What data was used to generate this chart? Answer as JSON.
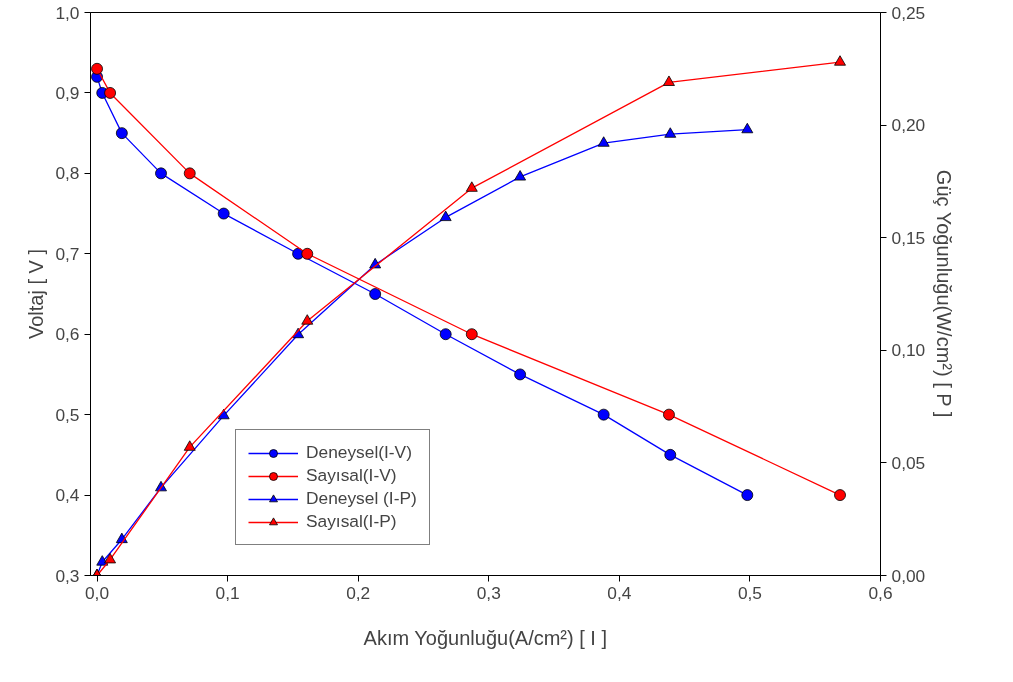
{
  "chart_data": {
    "type": "line",
    "xlabel": "Akım Yoğunluğu(A/cm²) [ I ]",
    "ylabel": "Voltaj [ V ]",
    "y2label": "Güç Yoğunluğu(W/cm²) [ P ]",
    "xlim": [
      -0.005,
      0.6
    ],
    "ylim": [
      0.3,
      1.0
    ],
    "y2lim": [
      0,
      0.25
    ],
    "xticks": [
      {
        "value": 0,
        "label": "0,0"
      },
      {
        "value": 0.1,
        "label": "0,1"
      },
      {
        "value": 0.2,
        "label": "0,2"
      },
      {
        "value": 0.3,
        "label": "0,3"
      },
      {
        "value": 0.4,
        "label": "0,4"
      },
      {
        "value": 0.5,
        "label": "0,5"
      },
      {
        "value": 0.6,
        "label": "0,6"
      }
    ],
    "yticks": [
      {
        "value": 0.3,
        "label": "0,3"
      },
      {
        "value": 0.4,
        "label": "0,4"
      },
      {
        "value": 0.5,
        "label": "0,5"
      },
      {
        "value": 0.6,
        "label": "0,6"
      },
      {
        "value": 0.7,
        "label": "0,7"
      },
      {
        "value": 0.8,
        "label": "0,8"
      },
      {
        "value": 0.9,
        "label": "0,9"
      },
      {
        "value": 1.0,
        "label": "1,0"
      }
    ],
    "y2ticks": [
      {
        "value": 0,
        "label": "0,00"
      },
      {
        "value": 0.05,
        "label": "0,05"
      },
      {
        "value": 0.1,
        "label": "0,10"
      },
      {
        "value": 0.15,
        "label": "0,15"
      },
      {
        "value": 0.2,
        "label": "0,20"
      },
      {
        "value": 0.25,
        "label": "0,25"
      }
    ],
    "grid": false,
    "legend": "bottom left",
    "line_style": "solid",
    "series": [
      {
        "name": "Deneysel(I-V)",
        "color": "#0000ff",
        "marker": "circle",
        "x": [
          0,
          0.004,
          0.019,
          0.049,
          0.097,
          0.154,
          0.213,
          0.267,
          0.324,
          0.388,
          0.439,
          0.498
        ],
        "values": [
          0.92,
          0.9,
          0.85,
          0.8,
          0.75,
          0.7,
          0.65,
          0.6,
          0.55,
          0.5,
          0.45,
          0.4
        ]
      },
      {
        "name": "Sayısal(I-V)",
        "color": "#ff0000",
        "marker": "circle",
        "x": [
          0,
          0.01,
          0.071,
          0.161,
          0.287,
          0.438,
          0.569
        ],
        "values": [
          0.93,
          0.9,
          0.8,
          0.7,
          0.6,
          0.5,
          0.4
        ]
      },
      {
        "name": "Deneysel (I-P)",
        "color": "#0000ff",
        "marker": "triangle",
        "axis": "y2",
        "x": [
          0,
          0.004,
          0.019,
          0.049,
          0.097,
          0.154,
          0.213,
          0.267,
          0.324,
          0.388,
          0.439,
          0.498
        ],
        "values": [
          0,
          0.006,
          0.016,
          0.039,
          0.071,
          0.107,
          0.138,
          0.159,
          0.177,
          0.192,
          0.196,
          0.198
        ]
      },
      {
        "name": "Sayısal(I-P)",
        "color": "#ff0000",
        "marker": "triangle",
        "axis": "y2",
        "x": [
          0,
          0.01,
          0.071,
          0.161,
          0.287,
          0.438,
          0.569
        ],
        "values": [
          0,
          0.007,
          0.057,
          0.113,
          0.172,
          0.219,
          0.228
        ]
      }
    ]
  }
}
